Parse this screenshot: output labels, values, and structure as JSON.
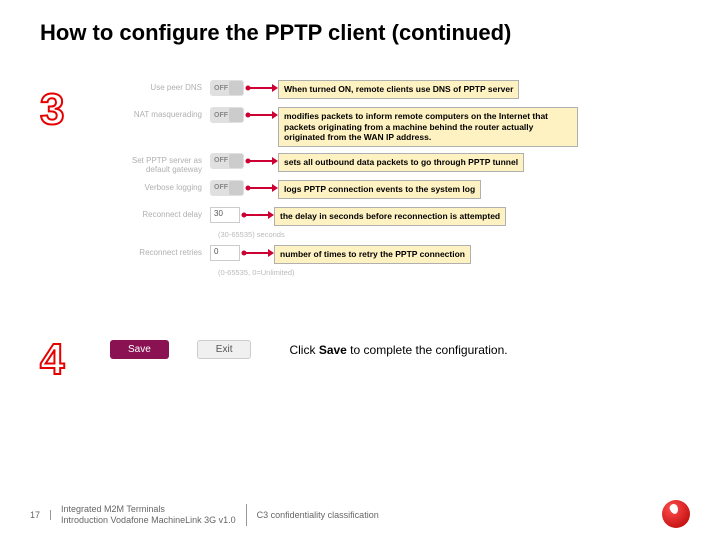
{
  "title": "How to configure the PPTP client (continued)",
  "step3_num": "3",
  "step4_num": "4",
  "rows": [
    {
      "label": "Use peer DNS",
      "control": "toggle",
      "value": "OFF",
      "hint": "",
      "callout": "When turned ON, remote clients use DNS of PPTP server"
    },
    {
      "label": "NAT masquerading",
      "control": "toggle",
      "value": "OFF",
      "hint": "",
      "callout": "modifies packets to inform remote computers on the Internet that packets originating from a machine behind the router actually originated from the WAN IP address."
    },
    {
      "label": "Set PPTP server as default gateway",
      "control": "toggle",
      "value": "OFF",
      "hint": "",
      "callout": "sets all outbound data packets to go through PPTP tunnel"
    },
    {
      "label": "Verbose logging",
      "control": "toggle",
      "value": "OFF",
      "hint": "",
      "callout": "logs PPTP connection events to the system log"
    },
    {
      "label": "Reconnect delay",
      "control": "input",
      "value": "30",
      "hint": "(30-65535) seconds",
      "callout": "the delay in seconds before reconnection is attempted"
    },
    {
      "label": "Reconnect retries",
      "control": "input",
      "value": "0",
      "hint": "(0-65535, 0=Unlimited)",
      "callout": "number of times to retry the PPTP connection"
    }
  ],
  "buttons": {
    "save": "Save",
    "exit": "Exit"
  },
  "instruction_pre": "Click ",
  "instruction_bold": "Save",
  "instruction_post": " to complete the configuration.",
  "footer": {
    "page": "17",
    "line1": "Integrated M2M Terminals",
    "line2": "Introduction Vodafone MachineLink 3G v1.0",
    "classification": "C3 confidentiality classification"
  },
  "colors": {
    "accent_red": "#e60000",
    "callout_bg": "#fff2c2",
    "save_bg": "#8a1253",
    "arrow_stroke": "#cc0033"
  }
}
